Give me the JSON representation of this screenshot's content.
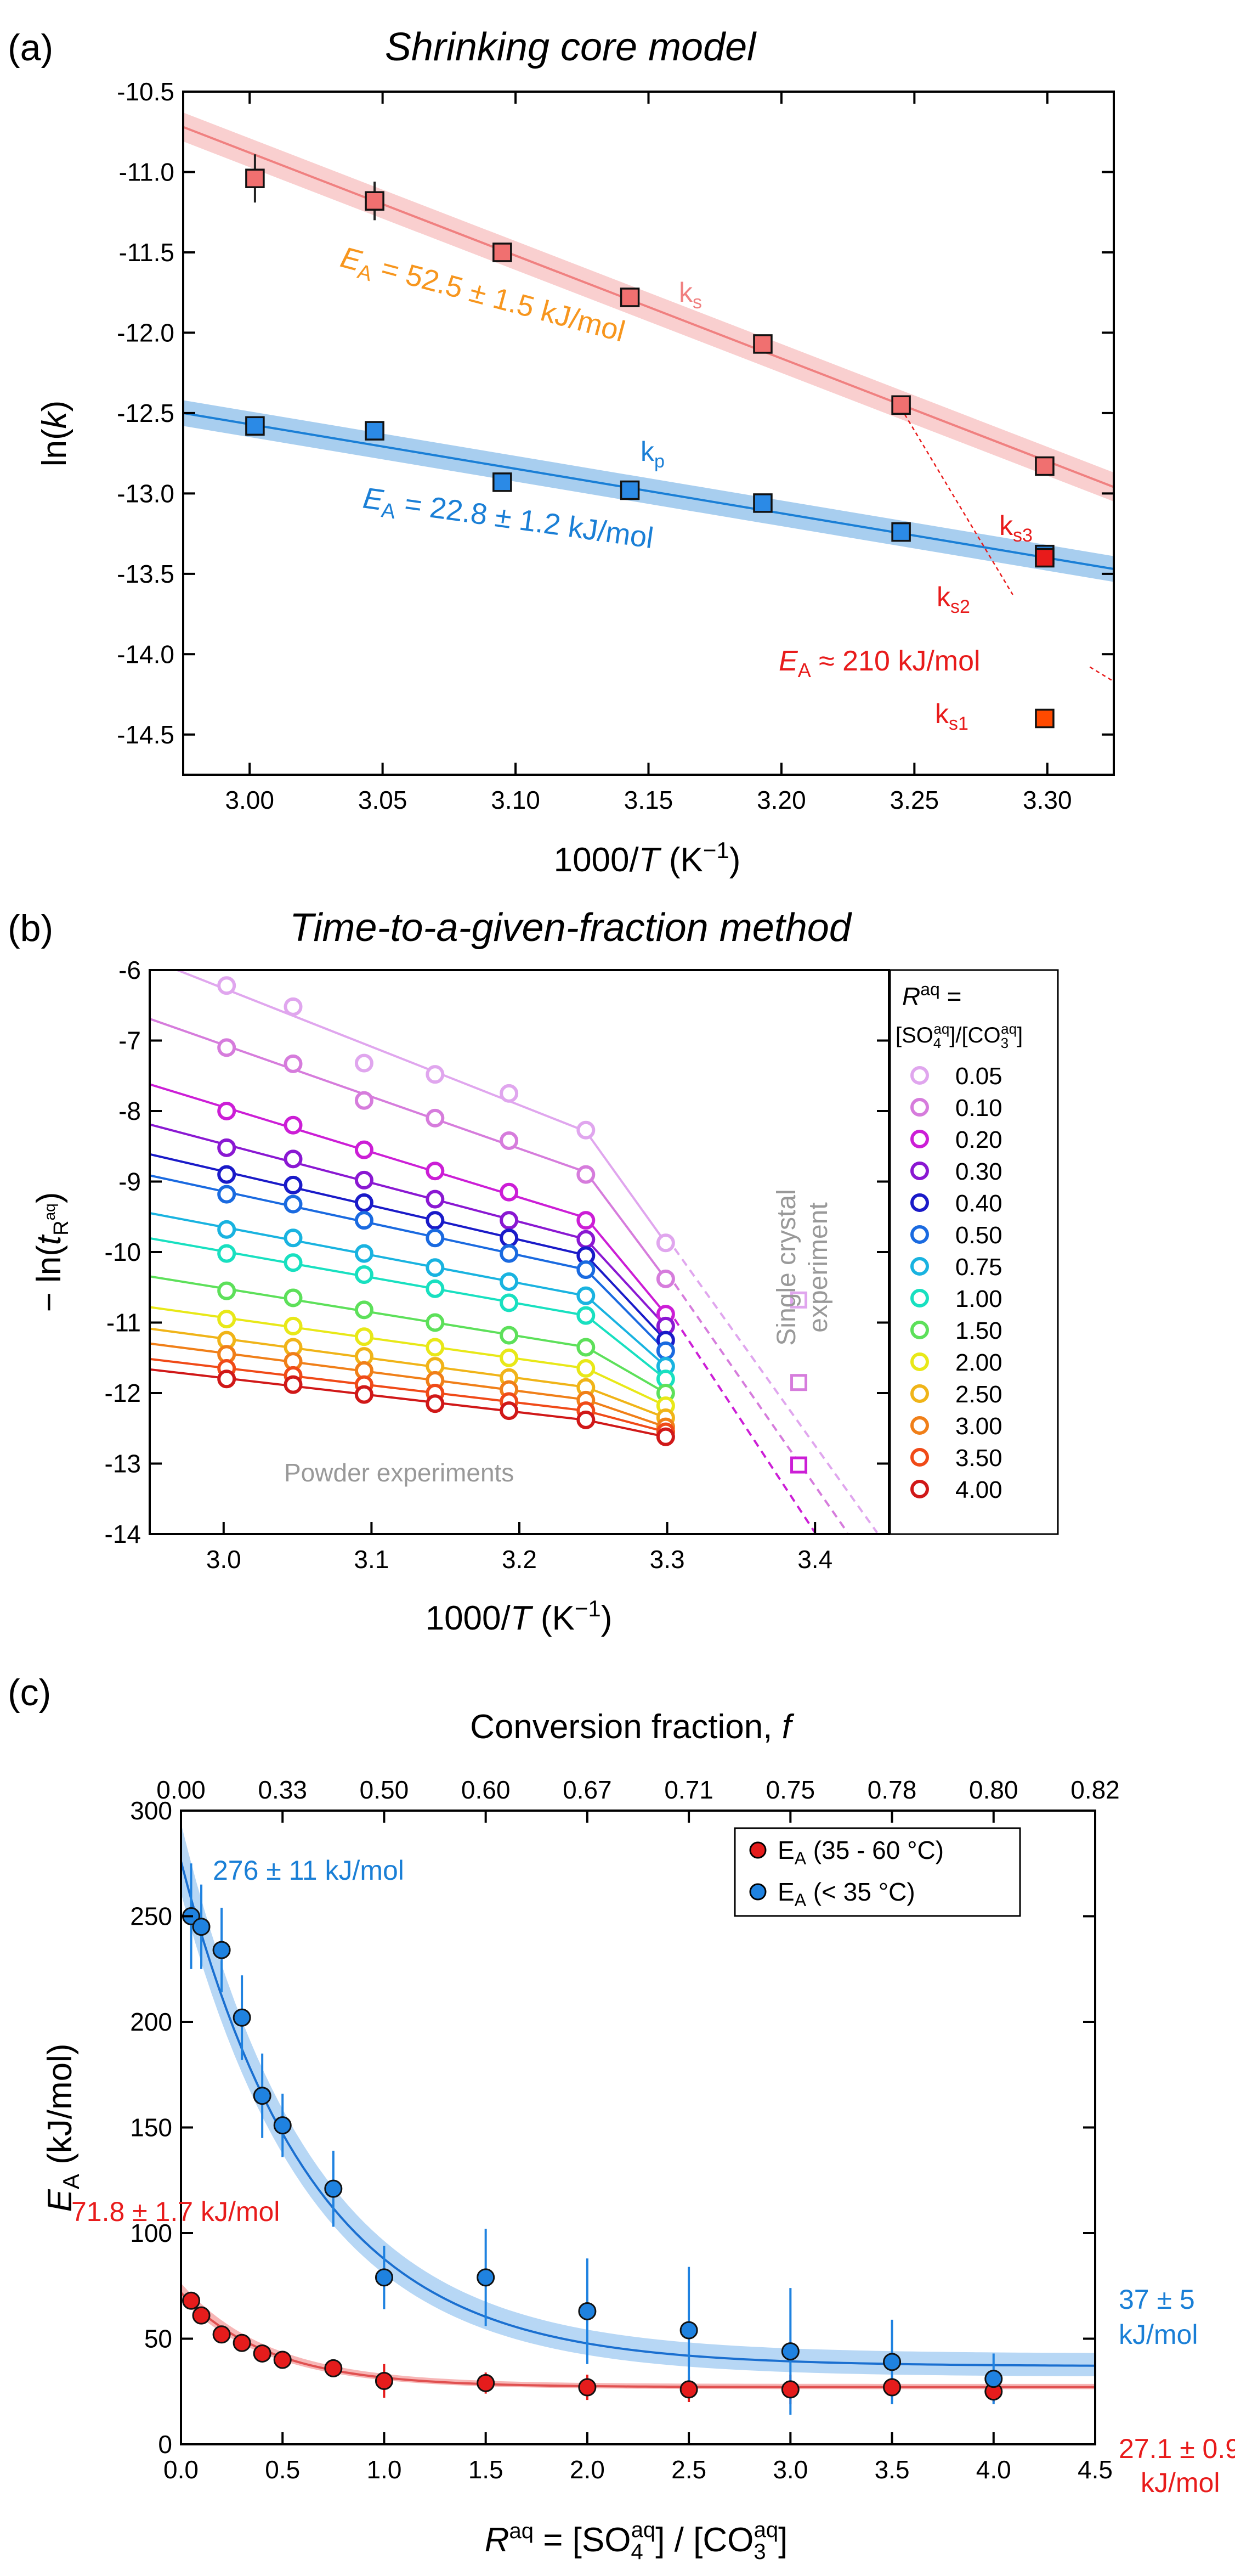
{
  "chart_data": [
    {
      "panel": "(a)",
      "type": "scatter",
      "title": "Shrinking core model",
      "xlabel": "1000/T (K⁻¹)",
      "xlabel_pre": "1000/",
      "xlabel_var": "T",
      "xlabel_post": " (K",
      "xlabel_sup": "−1",
      "xlabel_close": ")",
      "ylabel": "ln(k)",
      "ylabel_pre": "ln(",
      "ylabel_var": "k",
      "ylabel_post": ")",
      "xlim": [
        2.975,
        3.325
      ],
      "ylim": [
        -14.75,
        -10.5
      ],
      "xticks": [
        3.0,
        3.05,
        3.1,
        3.15,
        3.2,
        3.25,
        3.3
      ],
      "xtick_labels": [
        "3.00",
        "3.05",
        "3.10",
        "3.15",
        "3.20",
        "3.25",
        "3.30"
      ],
      "yticks": [
        -10.5,
        -11.0,
        -11.5,
        -12.0,
        -12.5,
        -13.0,
        -13.5,
        -14.0,
        -14.5
      ],
      "ytick_labels": [
        "-10.5",
        "-11.0",
        "-11.5",
        "-12.0",
        "-12.5",
        "-13.0",
        "-13.5",
        "-14.0",
        "-14.5"
      ],
      "series": [
        {
          "name": "k_s",
          "label": "k",
          "sub": "s",
          "color": "#f08080",
          "marker_color": "#f07070",
          "x": [
            3.002,
            3.047,
            3.095,
            3.143,
            3.193,
            3.245,
            3.299
          ],
          "y": [
            -11.04,
            -11.18,
            -11.5,
            -11.78,
            -12.07,
            -12.45,
            -12.83
          ],
          "yerr": [
            0.15,
            0.12,
            0.0,
            0.0,
            0.0,
            0.0,
            0.0
          ],
          "fit": {
            "x0": 2.975,
            "y0": -10.72,
            "x1": 3.325,
            "y1": -12.96,
            "band": 0.09
          },
          "annotation": "E_A = 52.5 ± 1.5 kJ/mol",
          "annotation_color": "#f7961e"
        },
        {
          "name": "k_p",
          "label": "k",
          "sub": "p",
          "color": "#1a7fd6",
          "marker_color": "#2b8ae6",
          "x": [
            3.002,
            3.047,
            3.095,
            3.143,
            3.193,
            3.245,
            3.299
          ],
          "y": [
            -12.58,
            -12.61,
            -12.93,
            -12.98,
            -13.06,
            -13.24,
            -13.38
          ],
          "yerr": [
            0,
            0,
            0,
            0,
            0,
            0,
            0
          ],
          "fit": {
            "x0": 2.975,
            "y0": -12.5,
            "x1": 3.325,
            "y1": -13.47,
            "band": 0.08
          },
          "annotation": "E_A = 22.8 ± 1.2 kJ/mol",
          "annotation_color": "#1a7fd6"
        }
      ],
      "single_points": [
        {
          "name": "k_s1",
          "label": "k",
          "sub": "s1",
          "x": 3.299,
          "y": -14.4,
          "color": "#ff4a00"
        },
        {
          "name": "k_s3",
          "label": "k",
          "sub": "s3",
          "x": 3.299,
          "y": -13.4,
          "color": "#e81b1b"
        }
      ],
      "dashed_line": {
        "x0": 3.245,
        "y0": -12.47,
        "x1": 3.287,
        "y1": -13.63
      },
      "dashed_line2": {
        "x0": 3.316,
        "y0": -14.08,
        "x1": 3.325,
        "y1": -14.17
      },
      "labels": {
        "ks": {
          "k": "k",
          "sub": "s"
        },
        "kp": {
          "k": "k",
          "sub": "p"
        },
        "ks2": {
          "k": "k",
          "sub": "s2"
        },
        "ks3": {
          "k": "k",
          "sub": "s3"
        },
        "ks1": {
          "k": "k",
          "sub": "s1"
        },
        "ea_red": {
          "E": "E",
          "sub": "A",
          "text": " ≈ 210 kJ/mol"
        },
        "ea_ks": {
          "E": "E",
          "sub": "A",
          "text": " = 52.5 ± 1.5 kJ/mol"
        },
        "ea_kp": {
          "E": "E",
          "sub": "A",
          "text": " = 22.8 ± 1.2 kJ/mol"
        }
      }
    },
    {
      "panel": "(b)",
      "type": "scatter",
      "title": "Time-to-a-given-fraction method",
      "xlabel": "1000/T (K⁻¹)",
      "xlabel_pre": "1000/",
      "xlabel_var": "T",
      "xlabel_post": " (K",
      "xlabel_sup": "−1",
      "xlabel_close": ")",
      "ylabel": "− ln(t_R^aq)",
      "ylabel_pre": "− ln(",
      "ylabel_var": "t",
      "ylabel_sub": "R",
      "ylabel_subsup": "aq",
      "ylabel_post": ")",
      "xlim": [
        2.95,
        3.45
      ],
      "ylim": [
        -14,
        -6
      ],
      "xticks": [
        3.0,
        3.1,
        3.2,
        3.3,
        3.4
      ],
      "xtick_labels": [
        "3.0",
        "3.1",
        "3.2",
        "3.3",
        "3.4"
      ],
      "yticks": [
        -6,
        -7,
        -8,
        -9,
        -10,
        -11,
        -12,
        -13,
        -14
      ],
      "ytick_labels": [
        "-6",
        "-7",
        "-8",
        "-9",
        "-10",
        "-11",
        "-12",
        "-13",
        "-14"
      ],
      "x": [
        3.002,
        3.047,
        3.095,
        3.143,
        3.193,
        3.245,
        3.299
      ],
      "series": [
        {
          "name": "0.05",
          "color": "#e0a6ee",
          "y": [
            -6.22,
            -6.52,
            -7.32,
            -7.48,
            -7.75,
            -8.27,
            -9.87
          ]
        },
        {
          "name": "0.10",
          "color": "#d67cdc",
          "y": [
            -7.1,
            -7.33,
            -7.85,
            -8.1,
            -8.42,
            -8.9,
            -10.38
          ]
        },
        {
          "name": "0.20",
          "color": "#cc1ed6",
          "y": [
            -8.0,
            -8.2,
            -8.55,
            -8.85,
            -9.15,
            -9.55,
            -10.88
          ]
        },
        {
          "name": "0.30",
          "color": "#8a18d2",
          "y": [
            -8.52,
            -8.68,
            -8.98,
            -9.25,
            -9.55,
            -9.82,
            -11.05
          ]
        },
        {
          "name": "0.40",
          "color": "#1a1ac8",
          "y": [
            -8.9,
            -9.05,
            -9.3,
            -9.55,
            -9.8,
            -10.05,
            -11.25
          ]
        },
        {
          "name": "0.50",
          "color": "#1a6ae0",
          "y": [
            -9.18,
            -9.32,
            -9.55,
            -9.8,
            -10.02,
            -10.25,
            -11.4
          ]
        },
        {
          "name": "0.75",
          "color": "#19b3e0",
          "y": [
            -9.68,
            -9.8,
            -10.02,
            -10.22,
            -10.42,
            -10.62,
            -11.62
          ]
        },
        {
          "name": "1.00",
          "color": "#18e0c0",
          "y": [
            -10.02,
            -10.15,
            -10.32,
            -10.52,
            -10.72,
            -10.9,
            -11.8
          ]
        },
        {
          "name": "1.50",
          "color": "#5de05a",
          "y": [
            -10.55,
            -10.65,
            -10.82,
            -11.0,
            -11.18,
            -11.35,
            -12.0
          ]
        },
        {
          "name": "2.00",
          "color": "#e8e818",
          "y": [
            -10.95,
            -11.05,
            -11.2,
            -11.35,
            -11.5,
            -11.65,
            -12.18
          ]
        },
        {
          "name": "2.50",
          "color": "#f0b418",
          "y": [
            -11.25,
            -11.35,
            -11.48,
            -11.62,
            -11.78,
            -11.92,
            -12.35
          ]
        },
        {
          "name": "3.00",
          "color": "#f07f18",
          "y": [
            -11.45,
            -11.55,
            -11.68,
            -11.82,
            -11.95,
            -12.1,
            -12.48
          ]
        },
        {
          "name": "3.50",
          "color": "#f04a18",
          "y": [
            -11.65,
            -11.75,
            -11.88,
            -12.0,
            -12.12,
            -12.25,
            -12.55
          ]
        },
        {
          "name": "4.00",
          "color": "#d01818",
          "y": [
            -11.8,
            -11.88,
            -12.02,
            -12.15,
            -12.25,
            -12.38,
            -12.62
          ]
        }
      ],
      "single_crystal": [
        {
          "x": 3.389,
          "y": -10.68,
          "color": "#e0a6ee"
        },
        {
          "x": 3.389,
          "y": -11.85,
          "color": "#d67cdc"
        },
        {
          "x": 3.389,
          "y": -13.02,
          "color": "#cc1ed6"
        }
      ],
      "dashed": [
        {
          "color": "#e0a6ee",
          "x0": 3.305,
          "y0": -9.95,
          "x1": 3.442,
          "y1": -13.98
        },
        {
          "color": "#d67cdc",
          "x0": 3.305,
          "y0": -10.45,
          "x1": 3.422,
          "y1": -13.98
        },
        {
          "color": "#cc1ed6",
          "x0": 3.305,
          "y0": -10.95,
          "x1": 3.4,
          "y1": -13.98
        }
      ],
      "legend": {
        "title_R": "R",
        "title_sup": "aq",
        "title_eq": " =",
        "title_line2a": "[SO",
        "title_line2b": "]/[CO",
        "title_line2c": "]",
        "so_sub": "4",
        "co_sub": "3",
        "sup": "aq"
      },
      "text_powder": "Powder experiments",
      "text_single": "Single crystal",
      "text_single2": "experiment"
    },
    {
      "panel": "(c)",
      "type": "scatter",
      "title": "",
      "top_axis_label": "Conversion fraction, ",
      "top_axis_var": "f",
      "top_ticks": [
        "0.00",
        "0.33",
        "0.50",
        "0.60",
        "0.67",
        "0.71",
        "0.75",
        "0.78",
        "0.80",
        "0.82"
      ],
      "xlabel_R": "R",
      "xlabel_sup": "aq",
      "xlabel_mid": " = [SO",
      "xlabel_so_sub": "4",
      "xlabel_so_sup": "aq",
      "xlabel_mid2": "] / [CO",
      "xlabel_co_sub": "3",
      "xlabel_co_sup": "aq",
      "xlabel_end": "]",
      "ylabel_E": "E",
      "ylabel_sub": "A",
      "ylabel_post": " (kJ/mol)",
      "xlim": [
        0,
        4.5
      ],
      "ylim": [
        0,
        300
      ],
      "xticks": [
        0,
        0.5,
        1.0,
        1.5,
        2.0,
        2.5,
        3.0,
        3.5,
        4.0,
        4.5
      ],
      "xtick_labels": [
        "0.0",
        "0.5",
        "1.0",
        "1.5",
        "2.0",
        "2.5",
        "3.0",
        "3.5",
        "4.0",
        "4.5"
      ],
      "yticks": [
        0,
        50,
        100,
        150,
        200,
        250,
        300
      ],
      "ytick_labels": [
        "0",
        "50",
        "100",
        "150",
        "200",
        "250",
        "300"
      ],
      "series": [
        {
          "name": "E_A (35 - 60 °C)",
          "legend_E": "E",
          "legend_sub": "A",
          "legend_rest": " (35 - 60 °C)",
          "color": "#e51c1c",
          "line_color": "#e05050",
          "x": [
            0.05,
            0.1,
            0.2,
            0.3,
            0.4,
            0.5,
            0.75,
            1.0,
            1.5,
            2.0,
            2.5,
            3.0,
            3.5,
            4.0
          ],
          "y": [
            68,
            61,
            52,
            48,
            43,
            40,
            36,
            30,
            29,
            27,
            26,
            26,
            27,
            25
          ],
          "yerr": [
            4,
            4,
            4,
            4,
            4,
            4,
            4,
            8,
            5,
            6,
            6,
            7,
            5,
            5
          ],
          "fit": {
            "a": 71.8,
            "c": 27.1,
            "k": 2.3,
            "band_hi": 3.0,
            "band_lo": 2.0
          }
        },
        {
          "name": "E_A (< 35 °C)",
          "legend_E": "E",
          "legend_sub": "A",
          "legend_rest": " (< 35 °C)",
          "color": "#1f82e0",
          "line_color": "#1a6fd0",
          "x": [
            0.05,
            0.1,
            0.2,
            0.3,
            0.4,
            0.5,
            0.75,
            1.0,
            1.5,
            2.0,
            2.5,
            3.0,
            3.5,
            4.0
          ],
          "y": [
            250,
            245,
            234,
            202,
            165,
            151,
            121,
            79,
            79,
            63,
            54,
            44,
            39,
            31
          ],
          "yerr": [
            25,
            20,
            20,
            20,
            20,
            15,
            18,
            15,
            23,
            25,
            30,
            30,
            20,
            12
          ],
          "fit": {
            "a": 276,
            "c": 37,
            "k": 1.55,
            "band_hi": 12,
            "band_lo": 10
          }
        }
      ],
      "annotations": {
        "blue_top": "276 ± 11 kJ/mol",
        "red_top": "71.8 ± 1.7 kJ/mol",
        "blue_right1": "37 ± 5",
        "blue_right2": "kJ/mol",
        "red_right1": "27.1 ± 0.9",
        "red_right2": "kJ/mol"
      }
    }
  ],
  "panel_labels": [
    "(a)",
    "(b)",
    "(c)"
  ]
}
